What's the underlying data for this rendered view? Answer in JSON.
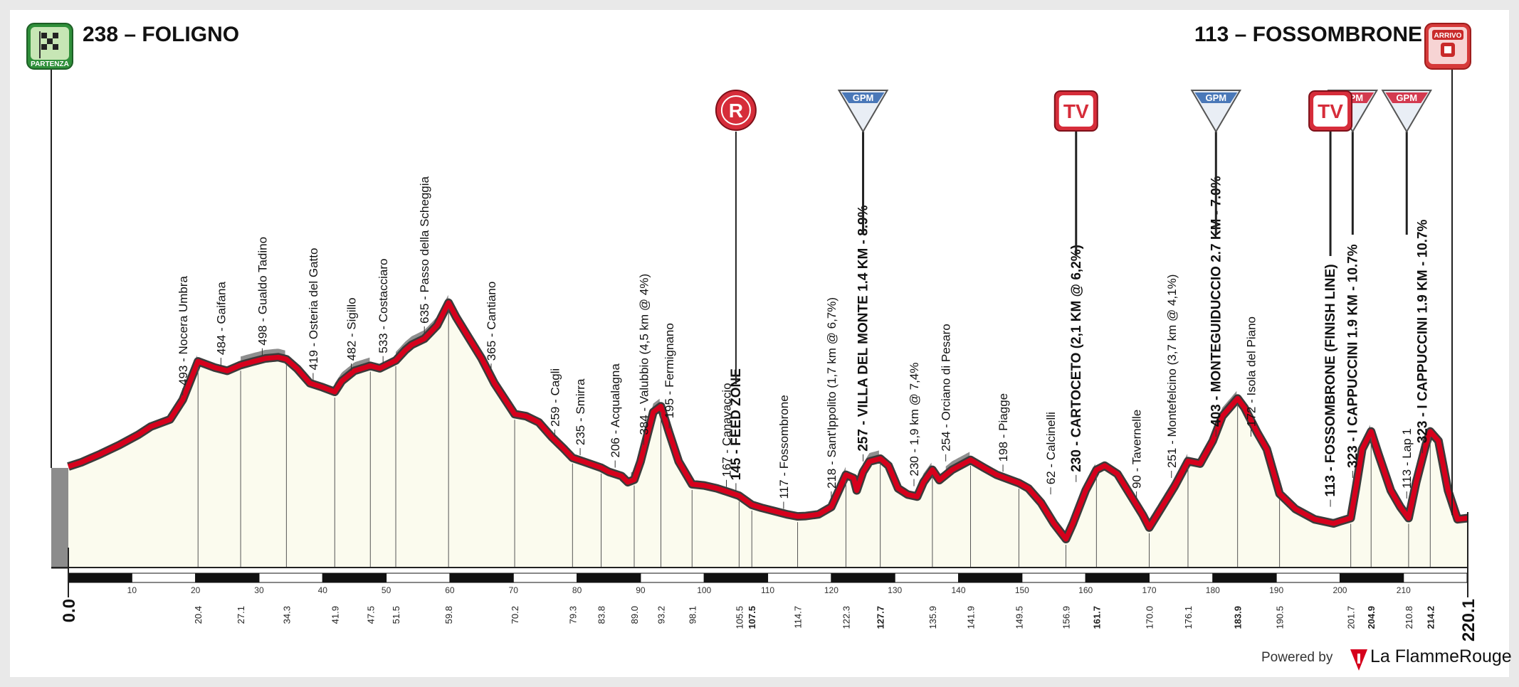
{
  "start": {
    "label": "238 – FOLIGNO",
    "badge": "PARTENZA"
  },
  "finish": {
    "label": "113 – FOSSOMBRONE",
    "badge": "ARRIVO"
  },
  "footer": {
    "powered_by": "Powered by",
    "brand": "La FlammeRouge"
  },
  "colors": {
    "road": "#d6001c",
    "profile_fill": "#fbfbee",
    "climb_fill": "#8f8f8f",
    "gpm": "#4a78b8",
    "gpm_final": "#d33a4f"
  },
  "chart_data": {
    "type": "area",
    "xlim": [
      0,
      220.1
    ],
    "ylim_m": [
      0,
      700
    ],
    "x_axis_ticks": [
      10,
      20,
      30,
      40,
      50,
      60,
      70,
      80,
      90,
      100,
      110,
      120,
      130,
      140,
      150,
      160,
      170,
      180,
      190,
      200,
      210
    ],
    "profile": [
      [
        0,
        238
      ],
      [
        2,
        248
      ],
      [
        5,
        268
      ],
      [
        8,
        290
      ],
      [
        11,
        315
      ],
      [
        13,
        335
      ],
      [
        16,
        352
      ],
      [
        18,
        400
      ],
      [
        20.4,
        493
      ],
      [
        23,
        478
      ],
      [
        25,
        470
      ],
      [
        27.1,
        484
      ],
      [
        29,
        492
      ],
      [
        31,
        500
      ],
      [
        33,
        503
      ],
      [
        34.3,
        498
      ],
      [
        36,
        475
      ],
      [
        38,
        440
      ],
      [
        40,
        430
      ],
      [
        41.9,
        419
      ],
      [
        43,
        445
      ],
      [
        45,
        470
      ],
      [
        47.5,
        482
      ],
      [
        49,
        476
      ],
      [
        51.5,
        495
      ],
      [
        53,
        520
      ],
      [
        54,
        533
      ],
      [
        56,
        548
      ],
      [
        58,
        580
      ],
      [
        59.8,
        635
      ],
      [
        61,
        600
      ],
      [
        63,
        550
      ],
      [
        65,
        500
      ],
      [
        67,
        440
      ],
      [
        70.2,
        365
      ],
      [
        72,
        360
      ],
      [
        74,
        345
      ],
      [
        76,
        310
      ],
      [
        78,
        280
      ],
      [
        79.3,
        259
      ],
      [
        81,
        250
      ],
      [
        83.8,
        235
      ],
      [
        85,
        225
      ],
      [
        87,
        215
      ],
      [
        88,
        200
      ],
      [
        89,
        206
      ],
      [
        90,
        250
      ],
      [
        91,
        310
      ],
      [
        92,
        370
      ],
      [
        93.2,
        384
      ],
      [
        94.5,
        320
      ],
      [
        96,
        250
      ],
      [
        98.1,
        195
      ],
      [
        100,
        192
      ],
      [
        102,
        185
      ],
      [
        104,
        175
      ],
      [
        105.5,
        167
      ],
      [
        107.5,
        145
      ],
      [
        109,
        138
      ],
      [
        111,
        130
      ],
      [
        113,
        122
      ],
      [
        114.7,
        117
      ],
      [
        116,
        118
      ],
      [
        118,
        122
      ],
      [
        120,
        140
      ],
      [
        122.3,
        218
      ],
      [
        123.5,
        210
      ],
      [
        124,
        180
      ],
      [
        125,
        225
      ],
      [
        126,
        250
      ],
      [
        127.7,
        257
      ],
      [
        129,
        240
      ],
      [
        130.5,
        185
      ],
      [
        132,
        170
      ],
      [
        133.5,
        165
      ],
      [
        134.5,
        200
      ],
      [
        135.9,
        230
      ],
      [
        137,
        205
      ],
      [
        139,
        230
      ],
      [
        141.9,
        254
      ],
      [
        144,
        235
      ],
      [
        146,
        218
      ],
      [
        149.5,
        198
      ],
      [
        151,
        185
      ],
      [
        153,
        150
      ],
      [
        155,
        100
      ],
      [
        156.9,
        62
      ],
      [
        158,
        100
      ],
      [
        160,
        180
      ],
      [
        161.7,
        230
      ],
      [
        163,
        240
      ],
      [
        165,
        220
      ],
      [
        167,
        170
      ],
      [
        169,
        120
      ],
      [
        170,
        90
      ],
      [
        172,
        140
      ],
      [
        174,
        190
      ],
      [
        176.1,
        251
      ],
      [
        178,
        245
      ],
      [
        180,
        300
      ],
      [
        181.5,
        360
      ],
      [
        183.9,
        403
      ],
      [
        185,
        380
      ],
      [
        187,
        320
      ],
      [
        188.5,
        280
      ],
      [
        190.5,
        172
      ],
      [
        193,
        135
      ],
      [
        196,
        110
      ],
      [
        199,
        100
      ],
      [
        200,
        105
      ],
      [
        201.7,
        113
      ],
      [
        202.5,
        185
      ],
      [
        203.5,
        280
      ],
      [
        204.9,
        323
      ],
      [
        206,
        270
      ],
      [
        208,
        180
      ],
      [
        209.5,
        140
      ],
      [
        210.8,
        113
      ],
      [
        212,
        200
      ],
      [
        213.5,
        290
      ],
      [
        214.2,
        323
      ],
      [
        215.5,
        300
      ],
      [
        217,
        180
      ],
      [
        218.5,
        110
      ],
      [
        220.1,
        113
      ]
    ],
    "climbs": [
      [
        18,
        20.4
      ],
      [
        27.1,
        34.3
      ],
      [
        41.9,
        47.5
      ],
      [
        51.5,
        59.8
      ],
      [
        88.5,
        93.2
      ],
      [
        120,
        122.3
      ],
      [
        125,
        127.7
      ],
      [
        133.5,
        135.9
      ],
      [
        138,
        141.9
      ],
      [
        158,
        161.7
      ],
      [
        170,
        176.1
      ],
      [
        180,
        183.9
      ],
      [
        202,
        204.9
      ],
      [
        211,
        214.2
      ]
    ],
    "axis_km_labels": [
      {
        "km": 20.4,
        "text": "20.4",
        "bold": false
      },
      {
        "km": 27.1,
        "text": "27.1",
        "bold": false
      },
      {
        "km": 34.3,
        "text": "34.3",
        "bold": false
      },
      {
        "km": 41.9,
        "text": "41.9",
        "bold": false
      },
      {
        "km": 47.5,
        "text": "47.5",
        "bold": false
      },
      {
        "km": 51.5,
        "text": "51.5",
        "bold": false
      },
      {
        "km": 59.8,
        "text": "59.8",
        "bold": false
      },
      {
        "km": 70.2,
        "text": "70.2",
        "bold": false
      },
      {
        "km": 79.3,
        "text": "79.3",
        "bold": false
      },
      {
        "km": 83.8,
        "text": "83.8",
        "bold": false
      },
      {
        "km": 89.0,
        "text": "89.0",
        "bold": false
      },
      {
        "km": 93.2,
        "text": "93.2",
        "bold": false
      },
      {
        "km": 98.1,
        "text": "98.1",
        "bold": false
      },
      {
        "km": 105.5,
        "text": "105.5",
        "bold": false
      },
      {
        "km": 107.5,
        "text": "107.5",
        "bold": true
      },
      {
        "km": 114.7,
        "text": "114.7",
        "bold": false
      },
      {
        "km": 122.3,
        "text": "122.3",
        "bold": false
      },
      {
        "km": 127.7,
        "text": "127.7",
        "bold": true
      },
      {
        "km": 135.9,
        "text": "135.9",
        "bold": false
      },
      {
        "km": 141.9,
        "text": "141.9",
        "bold": false
      },
      {
        "km": 149.5,
        "text": "149.5",
        "bold": false
      },
      {
        "km": 156.9,
        "text": "156.9",
        "bold": false
      },
      {
        "km": 161.7,
        "text": "161.7",
        "bold": true
      },
      {
        "km": 170.0,
        "text": "170.0",
        "bold": false
      },
      {
        "km": 176.1,
        "text": "176.1",
        "bold": false
      },
      {
        "km": 183.9,
        "text": "183.9",
        "bold": true
      },
      {
        "km": 190.5,
        "text": "190.5",
        "bold": false
      },
      {
        "km": 201.7,
        "text": "201.7",
        "bold": false
      },
      {
        "km": 204.9,
        "text": "204.9",
        "bold": true
      },
      {
        "km": 210.8,
        "text": "210.8",
        "bold": false
      },
      {
        "km": 214.2,
        "text": "214.2",
        "bold": true
      }
    ],
    "start_km_label": "0.0",
    "end_km_label": "220.1",
    "places": [
      {
        "km": 18.0,
        "alt": 400,
        "text": "493 - Nocera Umbra",
        "bold": false
      },
      {
        "km": 24.0,
        "alt": 474,
        "text": "484 - Gaifana",
        "bold": false
      },
      {
        "km": 30.5,
        "alt": 497,
        "text": "498 - Gualdo Tadino",
        "bold": false
      },
      {
        "km": 38.5,
        "alt": 437,
        "text": "419 - Osteria del Gatto",
        "bold": false
      },
      {
        "km": 44.5,
        "alt": 460,
        "text": "482 - Sigillo",
        "bold": false
      },
      {
        "km": 49.5,
        "alt": 478,
        "text": "533 - Costacciaro",
        "bold": false
      },
      {
        "km": 56.0,
        "alt": 550,
        "text": "635 - Passo della Scheggia",
        "bold": false
      },
      {
        "km": 66.5,
        "alt": 460,
        "text": "365 - Cantiano",
        "bold": false
      },
      {
        "km": 76.5,
        "alt": 300,
        "text": "259 - Cagli",
        "bold": false
      },
      {
        "km": 80.5,
        "alt": 255,
        "text": "235 - Smirra",
        "bold": false
      },
      {
        "km": 86.0,
        "alt": 225,
        "text": "206 - Acqualagna",
        "bold": false
      },
      {
        "km": 90.5,
        "alt": 280,
        "text": "384 - Valubbio (4,5 km @ 4%)",
        "bold": false
      },
      {
        "km": 94.5,
        "alt": 320,
        "text": "195 - Fermignano",
        "bold": false
      },
      {
        "km": 103.5,
        "alt": 178,
        "text": "167 - Canavaccio",
        "bold": false
      },
      {
        "km": 105.0,
        "alt": 170,
        "text": "145 - FEED ZONE",
        "bold": true
      },
      {
        "km": 112.5,
        "alt": 125,
        "text": "117 - Fossombrone",
        "bold": false
      },
      {
        "km": 120.0,
        "alt": 150,
        "text": "218 - Sant'Ippolito (1,7 km @ 6,7%)",
        "bold": false
      },
      {
        "km": 125.0,
        "alt": 240,
        "text": "257 - VILLA DEL MONTE 1.4 KM - 8.9%",
        "bold": true
      },
      {
        "km": 133.0,
        "alt": 180,
        "text": "230 - 1,9 km @ 7,4%",
        "bold": false
      },
      {
        "km": 138.0,
        "alt": 240,
        "text": "254 - Orciano di Pesaro",
        "bold": false
      },
      {
        "km": 147.0,
        "alt": 215,
        "text": "198 - Piagge",
        "bold": false
      },
      {
        "km": 154.5,
        "alt": 160,
        "text": "62 - Calcinelli",
        "bold": false
      },
      {
        "km": 158.5,
        "alt": 190,
        "text": "230 - CARTOCETO (2,1 KM @ 6,2%)",
        "bold": true
      },
      {
        "km": 168.0,
        "alt": 150,
        "text": "90 - Tavernelle",
        "bold": false
      },
      {
        "km": 173.5,
        "alt": 200,
        "text": "251 - Montefelcino (3,7 km @ 4,1%)",
        "bold": false
      },
      {
        "km": 180.5,
        "alt": 300,
        "text": "403 - MONTEGUIDUCCIO 2.7 KM - 7.0%",
        "bold": true
      },
      {
        "km": 186.0,
        "alt": 300,
        "text": "172 - Isola del Piano",
        "bold": false
      },
      {
        "km": 198.5,
        "alt": 130,
        "text": "113 - FOSSOMBRONE (FINISH LINE)",
        "bold": true
      },
      {
        "km": 202.0,
        "alt": 200,
        "text": "323 - I CAPPUCCINI 1.9 KM - 10.7%",
        "bold": true
      },
      {
        "km": 210.5,
        "alt": 150,
        "text": "113 - Lap 1",
        "bold": false
      },
      {
        "km": 213.0,
        "alt": 260,
        "text": "323 - I CAPPUCCINI 1.9 KM - 10.7%",
        "bold": true
      }
    ],
    "markers": [
      {
        "type": "circle",
        "text": "R",
        "km": 105.0
      },
      {
        "type": "gpm",
        "text": "GPM",
        "km": 125.0,
        "final": false
      },
      {
        "type": "tv",
        "text": "TV",
        "km": 158.5
      },
      {
        "type": "gpm",
        "text": "GPM",
        "km": 180.5,
        "final": false
      },
      {
        "type": "gpm",
        "text": "GPM",
        "km": 202.0,
        "final": true
      },
      {
        "type": "tv",
        "text": "TV",
        "km": 198.5
      },
      {
        "type": "gpm",
        "text": "GPM",
        "km": 210.5,
        "final": true
      }
    ]
  }
}
